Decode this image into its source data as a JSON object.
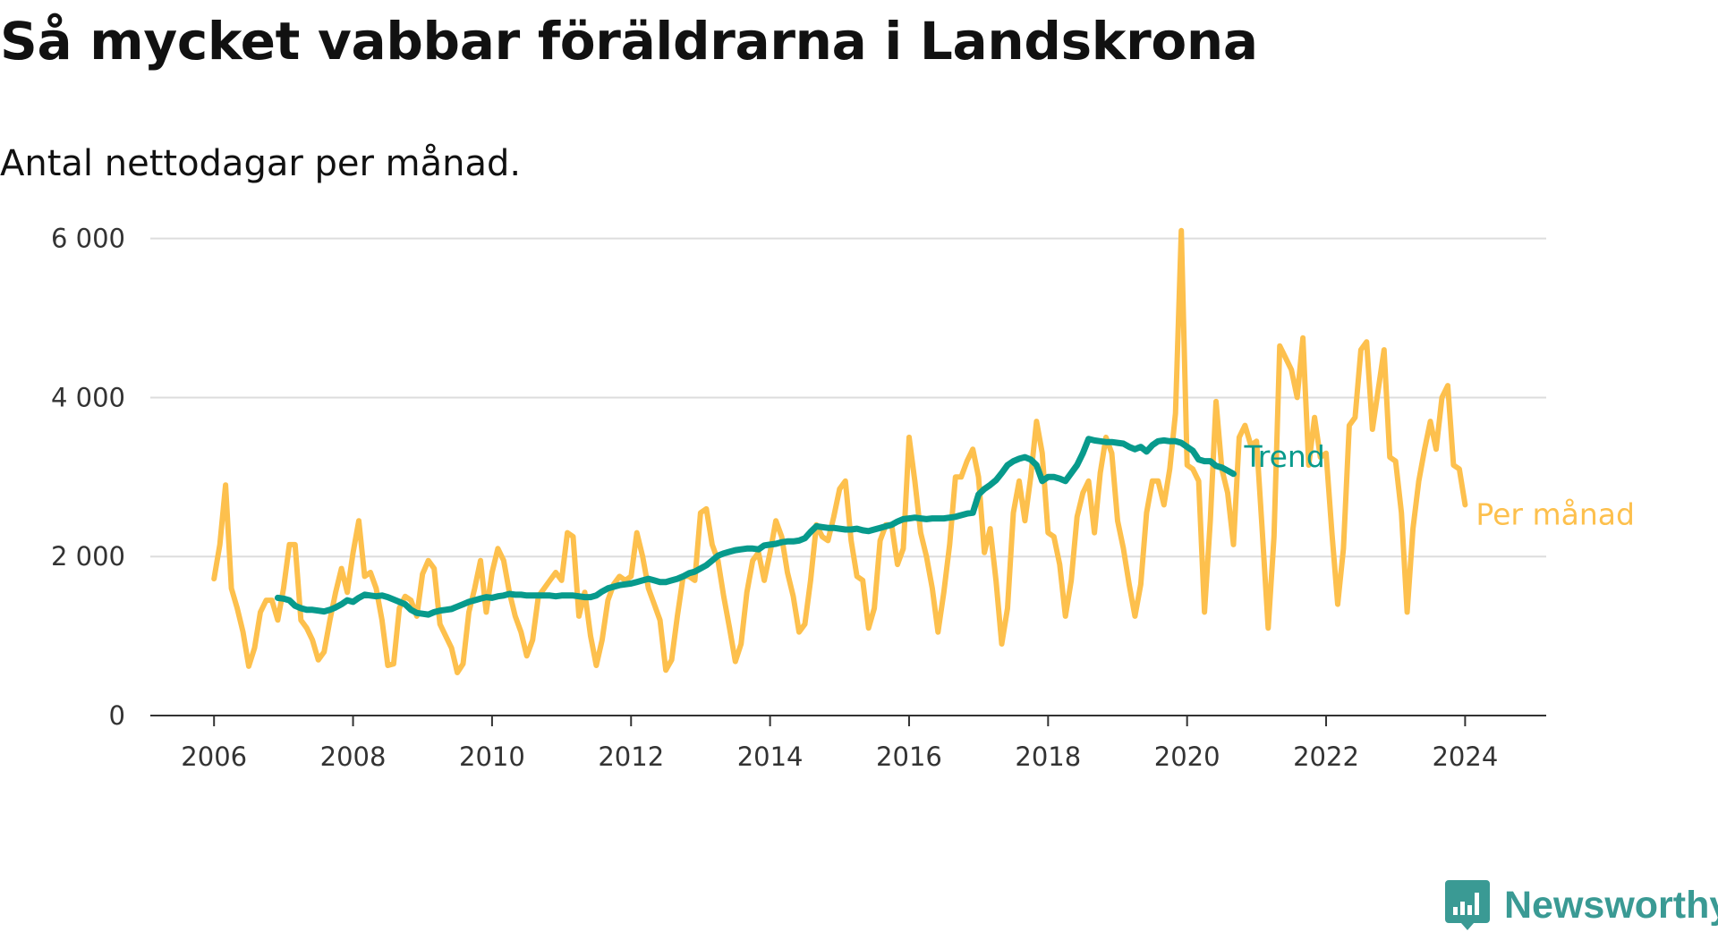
{
  "title": "Så mycket vabbar föräldrarna i Landskrona",
  "subtitle": "Antal nettodagar per månad.",
  "brand": {
    "name": "Newsworthy",
    "color": "#3a9a94",
    "icon": "newsworthy-logo-icon"
  },
  "colors": {
    "monthly": "#fdc04d",
    "trend": "#079a8c",
    "grid": "#dddddd",
    "axis": "#333333"
  },
  "chart_data": {
    "type": "line",
    "x_start": "2006-01",
    "x_ticks": [
      "2006",
      "2008",
      "2010",
      "2012",
      "2014",
      "2016",
      "2018",
      "2020",
      "2022",
      "2024"
    ],
    "y_ticks": [
      0,
      2000,
      4000,
      6000
    ],
    "y_tick_labels": [
      "0",
      "2 000",
      "4 000",
      "6 000"
    ],
    "xlim": [
      "2005-02",
      "2025-03"
    ],
    "ylim": [
      0,
      6300
    ],
    "grid": true,
    "series": [
      {
        "name": "Per månad",
        "start": "2006-01",
        "values": [
          1720,
          2150,
          2900,
          1600,
          1350,
          1050,
          620,
          850,
          1300,
          1450,
          1450,
          1200,
          1600,
          2150,
          2150,
          1200,
          1100,
          950,
          700,
          800,
          1200,
          1550,
          1850,
          1550,
          2050,
          2450,
          1750,
          1800,
          1600,
          1200,
          630,
          650,
          1350,
          1500,
          1450,
          1250,
          1780,
          1950,
          1850,
          1150,
          1000,
          850,
          540,
          650,
          1300,
          1600,
          1950,
          1300,
          1800,
          2100,
          1950,
          1550,
          1250,
          1050,
          750,
          950,
          1500,
          1600,
          1700,
          1800,
          1700,
          2300,
          2250,
          1250,
          1550,
          1000,
          630,
          950,
          1450,
          1650,
          1750,
          1700,
          1750,
          2300,
          2000,
          1600,
          1400,
          1200,
          570,
          700,
          1250,
          1750,
          1750,
          1700,
          2550,
          2600,
          2150,
          1950,
          1500,
          1100,
          680,
          900,
          1550,
          1950,
          2050,
          1700,
          2050,
          2450,
          2250,
          1800,
          1500,
          1050,
          1150,
          1700,
          2400,
          2250,
          2200,
          2500,
          2850,
          2950,
          2200,
          1750,
          1700,
          1100,
          1350,
          2200,
          2400,
          2400,
          1900,
          2100,
          3500,
          2950,
          2300,
          2000,
          1600,
          1050,
          1550,
          2150,
          3000,
          3000,
          3200,
          3350,
          3000,
          2050,
          2350,
          1700,
          900,
          1350,
          2550,
          2950,
          2450,
          3000,
          3700,
          3300,
          2300,
          2250,
          1900,
          1250,
          1700,
          2500,
          2800,
          2950,
          2300,
          3050,
          3500,
          3300,
          2450,
          2100,
          1650,
          1250,
          1650,
          2550,
          2950,
          2950,
          2650,
          3100,
          3800,
          6100,
          3150,
          3100,
          2950,
          1300,
          2450,
          3950,
          3100,
          2800,
          2150,
          3500,
          3650,
          3400,
          3450,
          2300,
          1100,
          2250,
          4650,
          4500,
          4350,
          4000,
          4750,
          3150,
          3750,
          3250,
          3300,
          2300,
          1400,
          2100,
          3650,
          3750,
          4600,
          4700,
          3600,
          4100,
          4600,
          3250,
          3200,
          2550,
          1300,
          2350,
          2950,
          3350,
          3700,
          3350,
          4000,
          4150,
          3150,
          3100,
          2650
        ]
      },
      {
        "name": "Trend",
        "start": "2006-12",
        "values": [
          1480,
          1470,
          1450,
          1380,
          1350,
          1330,
          1330,
          1320,
          1310,
          1330,
          1360,
          1400,
          1450,
          1430,
          1480,
          1520,
          1510,
          1500,
          1510,
          1490,
          1460,
          1430,
          1400,
          1330,
          1290,
          1280,
          1270,
          1300,
          1320,
          1330,
          1340,
          1370,
          1400,
          1430,
          1450,
          1470,
          1490,
          1480,
          1500,
          1510,
          1530,
          1520,
          1520,
          1510,
          1510,
          1510,
          1510,
          1510,
          1500,
          1510,
          1510,
          1510,
          1500,
          1490,
          1490,
          1510,
          1560,
          1600,
          1620,
          1640,
          1650,
          1660,
          1680,
          1700,
          1720,
          1700,
          1680,
          1680,
          1700,
          1720,
          1750,
          1790,
          1810,
          1850,
          1890,
          1950,
          2010,
          2040,
          2060,
          2080,
          2090,
          2100,
          2100,
          2090,
          2140,
          2150,
          2160,
          2180,
          2190,
          2190,
          2200,
          2230,
          2310,
          2380,
          2370,
          2360,
          2360,
          2350,
          2340,
          2340,
          2350,
          2330,
          2320,
          2340,
          2360,
          2380,
          2400,
          2440,
          2470,
          2480,
          2490,
          2480,
          2470,
          2480,
          2480,
          2480,
          2490,
          2500,
          2520,
          2540,
          2550,
          2780,
          2850,
          2900,
          2960,
          3050,
          3150,
          3200,
          3230,
          3250,
          3220,
          3150,
          2950,
          3000,
          3000,
          2980,
          2950,
          3050,
          3150,
          3300,
          3480,
          3460,
          3450,
          3440,
          3440,
          3430,
          3420,
          3380,
          3350,
          3380,
          3320,
          3400,
          3450,
          3460,
          3450,
          3450,
          3430,
          3380,
          3330,
          3220,
          3200,
          3200,
          3140,
          3120,
          3080,
          3040
        ]
      }
    ]
  }
}
